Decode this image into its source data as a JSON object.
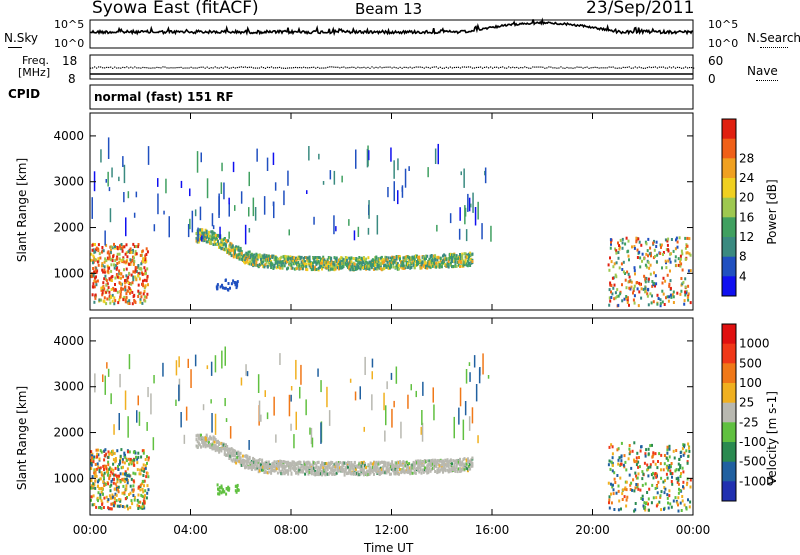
{
  "header": {
    "site": "Syowa East (fitACF)",
    "beam": "Beam 13",
    "date": "23/Sep/2011"
  },
  "top_panels": {
    "nsky_label": "N.Sky",
    "nsearch_label": "N.Search",
    "noise_ticks_left": [
      "10^5",
      "10^0"
    ],
    "noise_ticks_right": [
      "10^5",
      "10^0"
    ],
    "freq_label_1": "Freq.",
    "freq_label_2": "[MHz]",
    "freq_ticks_left": [
      "18",
      "8"
    ],
    "nave_label": "Nave",
    "nave_ticks_right": [
      "60",
      "0"
    ],
    "cpid_label": "CPID",
    "cpid_text": "normal (fast) 151 RF"
  },
  "chart_data": [
    {
      "type": "heatmap",
      "name": "power",
      "ylabel": "Slant Range [km]",
      "yticks": [
        "1000",
        "2000",
        "3000",
        "4000"
      ],
      "ylim": [
        200,
        4500
      ],
      "xlim_hours": [
        0,
        24
      ],
      "xticks": [
        "00:00",
        "04:00",
        "08:00",
        "12:00",
        "16:00",
        "20:00",
        "00:00"
      ],
      "colorbar_label": "Power [dB]",
      "colorbar_ticks": [
        "4",
        "8",
        "12",
        "16",
        "20",
        "24",
        "28"
      ],
      "colors": [
        "#1010f0",
        "#2050c0",
        "#3a8a80",
        "#40a060",
        "#9ec850",
        "#f0d020",
        "#f0a020",
        "#f06018",
        "#e02010"
      ]
    },
    {
      "type": "heatmap",
      "name": "velocity",
      "xlabel": "Time UT",
      "ylabel": "Slant Range [km]",
      "yticks": [
        "1000",
        "2000",
        "3000",
        "4000"
      ],
      "ylim": [
        200,
        4500
      ],
      "xlim_hours": [
        0,
        24
      ],
      "xticks": [
        "00:00",
        "04:00",
        "08:00",
        "12:00",
        "16:00",
        "20:00",
        "00:00"
      ],
      "colorbar_label": "Velocity [m s-1]",
      "colorbar_ticks": [
        "1000",
        "500",
        "100",
        "25",
        "-25",
        "-100",
        "-500",
        "-1000"
      ],
      "colors": [
        "#2030b0",
        "#2060a0",
        "#2a8a50",
        "#60c040",
        "#b8b8b0",
        "#f0b020",
        "#f07818",
        "#f03818",
        "#e01010"
      ]
    }
  ]
}
